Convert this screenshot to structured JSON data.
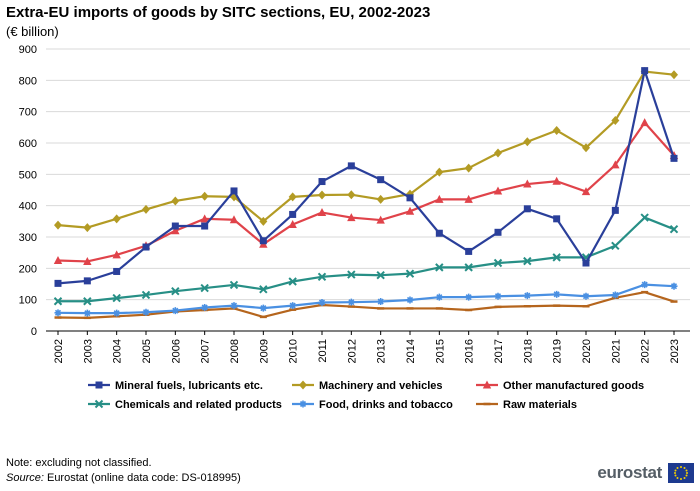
{
  "title": "Extra-EU imports of goods by SITC sections, EU, 2002-2023",
  "unit": "(€ billion)",
  "note": "Note: excluding  not classified.",
  "source_label": "Source:",
  "source_text": " Eurostat (online data code: DS-018995)",
  "logo": "eurostat",
  "chart_data": {
    "type": "line",
    "title": "Extra-EU imports of goods by SITC sections, EU, 2002-2023",
    "ylabel": "(€ billion)",
    "ylim": [
      0,
      900
    ],
    "yticks": [
      0,
      100,
      200,
      300,
      400,
      500,
      600,
      700,
      800,
      900
    ],
    "grid": true,
    "legend_position": "bottom",
    "categories": [
      "2002",
      "2003",
      "2004",
      "2005",
      "2006",
      "2007",
      "2008",
      "2009",
      "2010",
      "2011",
      "2012",
      "2013",
      "2014",
      "2015",
      "2016",
      "2017",
      "2018",
      "2019",
      "2020",
      "2021",
      "2022",
      "2023"
    ],
    "series": [
      {
        "name": "Mineral fuels, lubricants etc.",
        "color": "#2a3f9a",
        "marker": "square",
        "values": [
          152,
          160,
          190,
          268,
          335,
          335,
          447,
          288,
          372,
          477,
          527,
          483,
          425,
          312,
          254,
          315,
          390,
          358,
          217,
          385,
          831,
          551
        ]
      },
      {
        "name": "Machinery and vehicles",
        "color": "#b39b24",
        "marker": "diamond",
        "values": [
          338,
          330,
          358,
          388,
          415,
          430,
          428,
          350,
          428,
          434,
          435,
          420,
          437,
          507,
          520,
          568,
          604,
          640,
          585,
          672,
          828,
          818
        ]
      },
      {
        "name": "Other manufactured goods",
        "color": "#e0434a",
        "marker": "triangle",
        "values": [
          225,
          222,
          243,
          272,
          320,
          358,
          355,
          277,
          340,
          378,
          362,
          354,
          382,
          420,
          420,
          447,
          469,
          478,
          445,
          530,
          665,
          560
        ]
      },
      {
        "name": "Chemicals and related products",
        "color": "#278f86",
        "marker": "x",
        "values": [
          95,
          95,
          105,
          115,
          127,
          137,
          147,
          133,
          158,
          173,
          180,
          178,
          183,
          203,
          203,
          217,
          223,
          235,
          235,
          272,
          362,
          325
        ]
      },
      {
        "name": "Food, drinks and tobacco",
        "color": "#4a90e2",
        "marker": "star",
        "values": [
          58,
          57,
          57,
          60,
          65,
          75,
          81,
          73,
          81,
          91,
          92,
          94,
          99,
          108,
          108,
          111,
          113,
          117,
          111,
          115,
          148,
          143
        ]
      },
      {
        "name": "Raw materials",
        "color": "#b5651d",
        "marker": "dash",
        "values": [
          43,
          42,
          47,
          52,
          62,
          67,
          72,
          45,
          68,
          83,
          78,
          72,
          72,
          72,
          67,
          77,
          79,
          81,
          79,
          106,
          124,
          94
        ]
      }
    ]
  }
}
